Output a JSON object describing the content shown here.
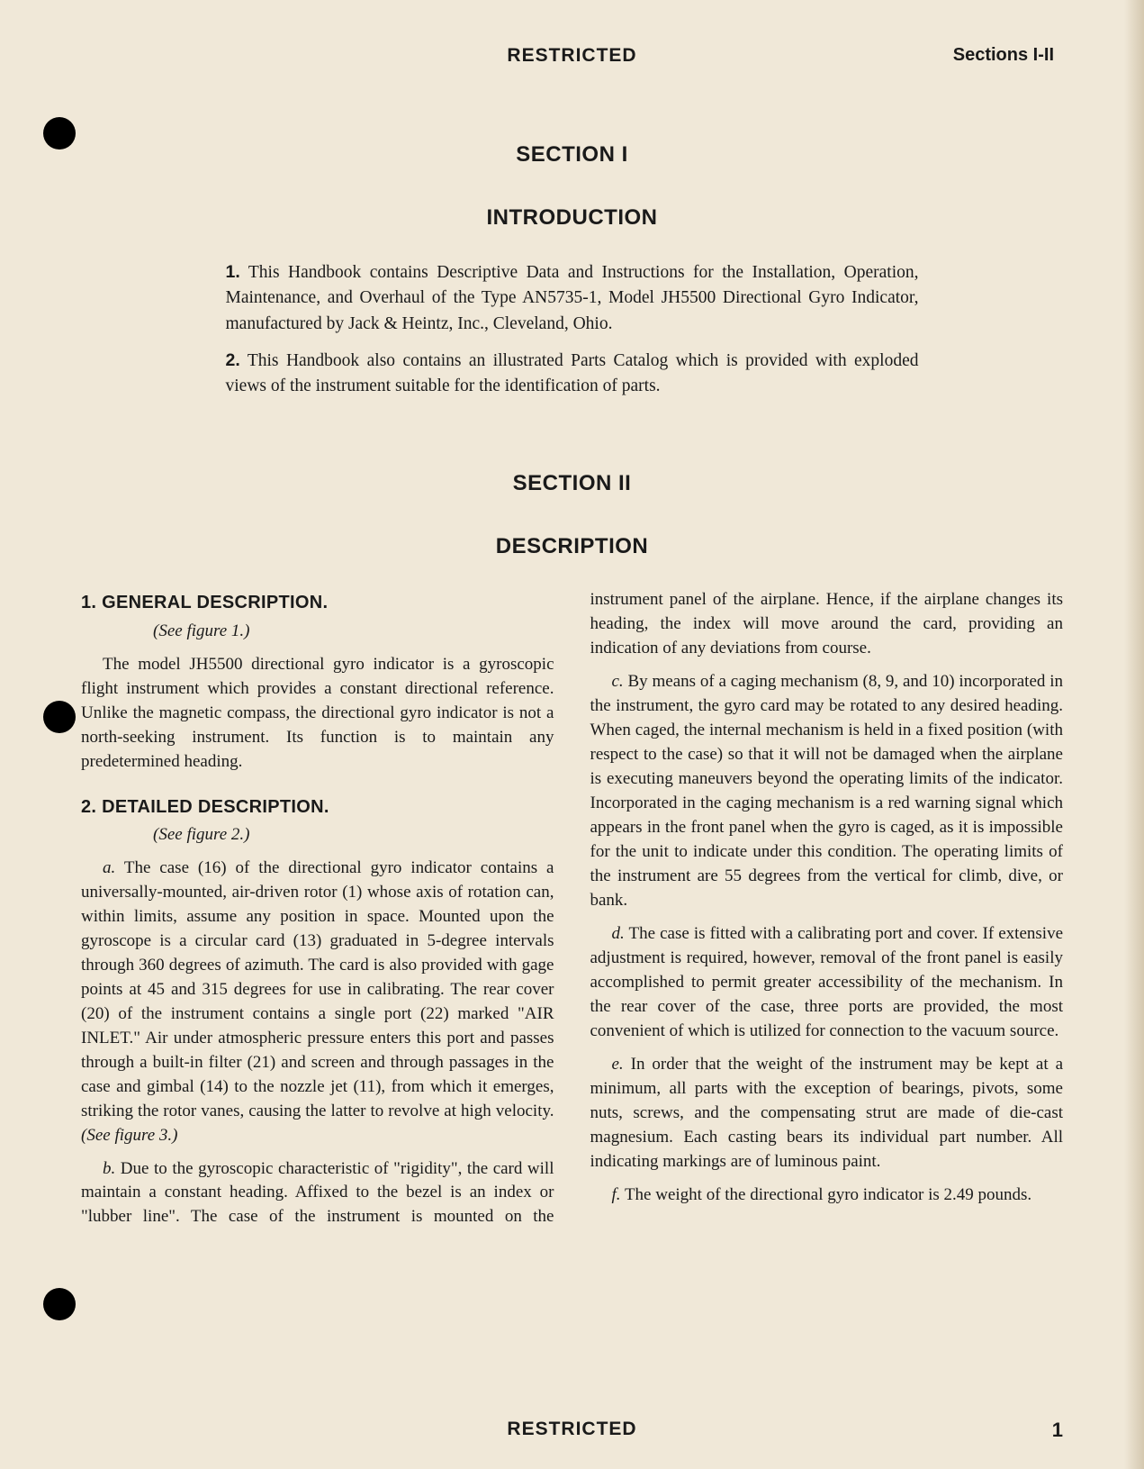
{
  "header": {
    "center": "RESTRICTED",
    "right": "Sections I-II"
  },
  "section1": {
    "title": "SECTION I",
    "subtitle": "INTRODUCTION",
    "para1_num": "1.",
    "para1": " This Handbook contains Descriptive Data and Instructions for the Installation, Operation, Maintenance, and Overhaul of the Type AN5735-1, Model JH5500 Directional Gyro Indicator, manufactured by Jack & Heintz, Inc., Cleveland, Ohio.",
    "para2_num": "2.",
    "para2": " This Handbook also contains an illustrated Parts Catalog which is provided with exploded views of the instrument suitable for the identification of parts."
  },
  "section2": {
    "title": "SECTION II",
    "subtitle": "DESCRIPTION",
    "heading1": "1. GENERAL DESCRIPTION.",
    "fig1": "(See figure 1.)",
    "general_para": "The model JH5500 directional gyro indicator is a gyroscopic flight instrument which provides a constant directional reference. Unlike the magnetic compass, the directional gyro indicator is not a north-seeking instrument. Its function is to maintain any predetermined heading.",
    "heading2": "2. DETAILED DESCRIPTION.",
    "fig2": "(See figure 2.)",
    "para_a_letter": "a.",
    "para_a": " The case (16) of the directional gyro indicator contains a universally-mounted, air-driven rotor (1) whose axis of rotation can, within limits, assume any position in space. Mounted upon the gyroscope is a circular card (13) graduated in 5-degree intervals through 360 degrees of azimuth. The card is also provided with gage points at 45 and 315 degrees for use in calibrating. The rear cover (20) of the instrument contains a single port (22) marked \"AIR INLET.\" Air under atmospheric pressure enters this port and passes through a built-in filter (21) and screen and through passages in the case and gimbal (14) to the nozzle jet (11), from which it emerges, striking the rotor vanes, causing the latter to revolve at high velocity. ",
    "para_a_fig": "(See figure 3.)",
    "para_b_letter": "b.",
    "para_b": " Due to the gyroscopic characteristic of \"rigidity\", the card will maintain a constant heading. Affixed to the bezel is an index or \"lubber line\". The case of the instrument is mounted on the instrument panel of the airplane. Hence, if the airplane changes its heading, the index will move around the card, providing an indication of any deviations from course.",
    "para_c_letter": "c.",
    "para_c": " By means of a caging mechanism (8, 9, and 10) incorporated in the instrument, the gyro card may be rotated to any desired heading. When caged, the internal mechanism is held in a fixed position (with respect to the case) so that it will not be damaged when the airplane is executing maneuvers beyond the operating limits of the indicator. Incorporated in the caging mechanism is a red warning signal which appears in the front panel when the gyro is caged, as it is impossible for the unit to indicate under this condition. The operating limits of the instrument are 55 degrees from the vertical for climb, dive, or bank.",
    "para_d_letter": "d.",
    "para_d": " The case is fitted with a calibrating port and cover. If extensive adjustment is required, however, removal of the front panel is easily accomplished to permit greater accessibility of the mechanism. In the rear cover of the case, three ports are provided, the most convenient of which is utilized for connection to the vacuum source.",
    "para_e_letter": "e.",
    "para_e": " In order that the weight of the instrument may be kept at a minimum, all parts with the exception of bearings, pivots, some nuts, screws, and the compensating strut are made of die-cast magnesium. Each casting bears its individual part number. All indicating markings are of luminous paint.",
    "para_f_letter": "f.",
    "para_f": " The weight of the directional gyro indicator is 2.49 pounds."
  },
  "footer": {
    "center": "RESTRICTED",
    "page": "1"
  }
}
